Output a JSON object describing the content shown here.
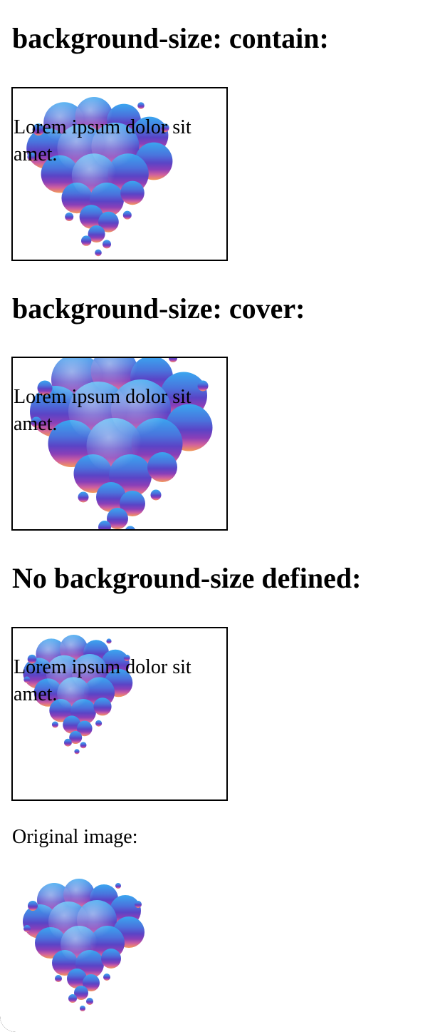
{
  "sections": [
    {
      "heading": "background-size: contain:",
      "box_text": "Lorem ipsum dolor sit amet.",
      "image_fit": "contain"
    },
    {
      "heading": "background-size: cover:",
      "box_text": "Lorem ipsum dolor sit amet.",
      "image_fit": "cover"
    },
    {
      "heading": "No background-size defined:",
      "box_text": "Lorem ipsum dolor sit amet.",
      "image_fit": "none"
    }
  ],
  "original_caption": "Original image:",
  "image": {
    "name": "colorful-smoke-cloud-image",
    "colors": [
      "#3aa0ec",
      "#4c6fd8",
      "#5a45c4",
      "#8a3fb8",
      "#c25aa8",
      "#f08a5a"
    ]
  }
}
